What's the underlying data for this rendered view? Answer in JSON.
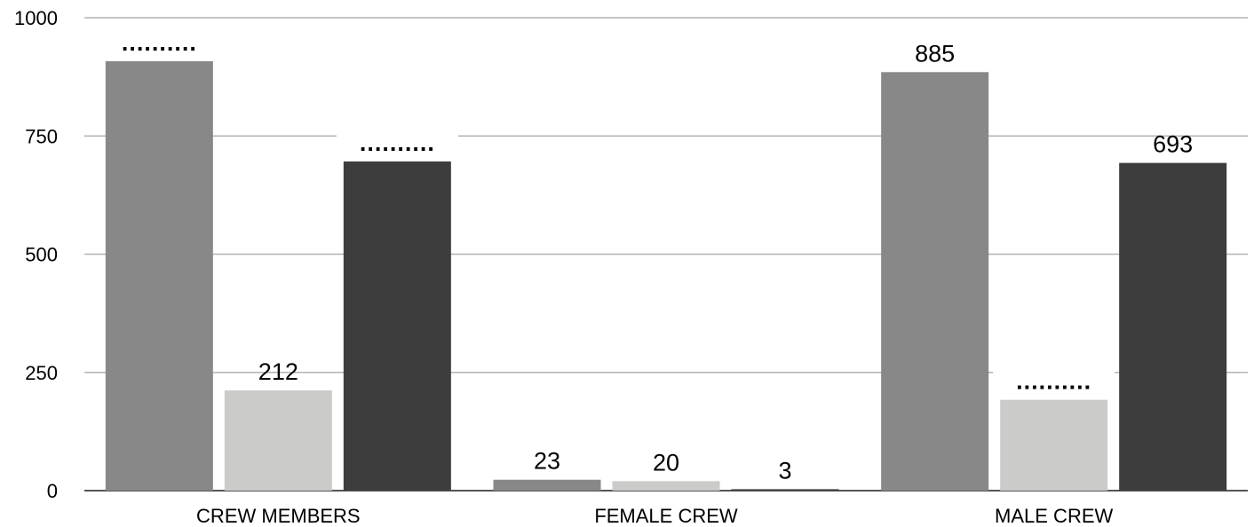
{
  "chart_data": {
    "type": "bar",
    "categories": [
      "CREW MEMBERS",
      "FEMALE CREW",
      "MALE CREW"
    ],
    "series": [
      {
        "values": [
          908,
          23,
          885
        ],
        "color": "#888888",
        "labels": [
          "..........",
          "23",
          "885"
        ]
      },
      {
        "values": [
          212,
          20,
          192
        ],
        "color": "#cbcbca",
        "labels": [
          "212",
          "20",
          ".........."
        ]
      },
      {
        "values": [
          696,
          3,
          693
        ],
        "color": "#3d3d3d",
        "labels": [
          "..........",
          "3",
          "693"
        ]
      }
    ],
    "yticks": [
      "0",
      "250",
      "500",
      "750",
      "1000"
    ],
    "ylim": [
      0,
      1000
    ],
    "grid": true,
    "legend": "none",
    "colors": {
      "grid": "#b3b3b3",
      "axis": "#555555",
      "text": "#000000"
    }
  }
}
